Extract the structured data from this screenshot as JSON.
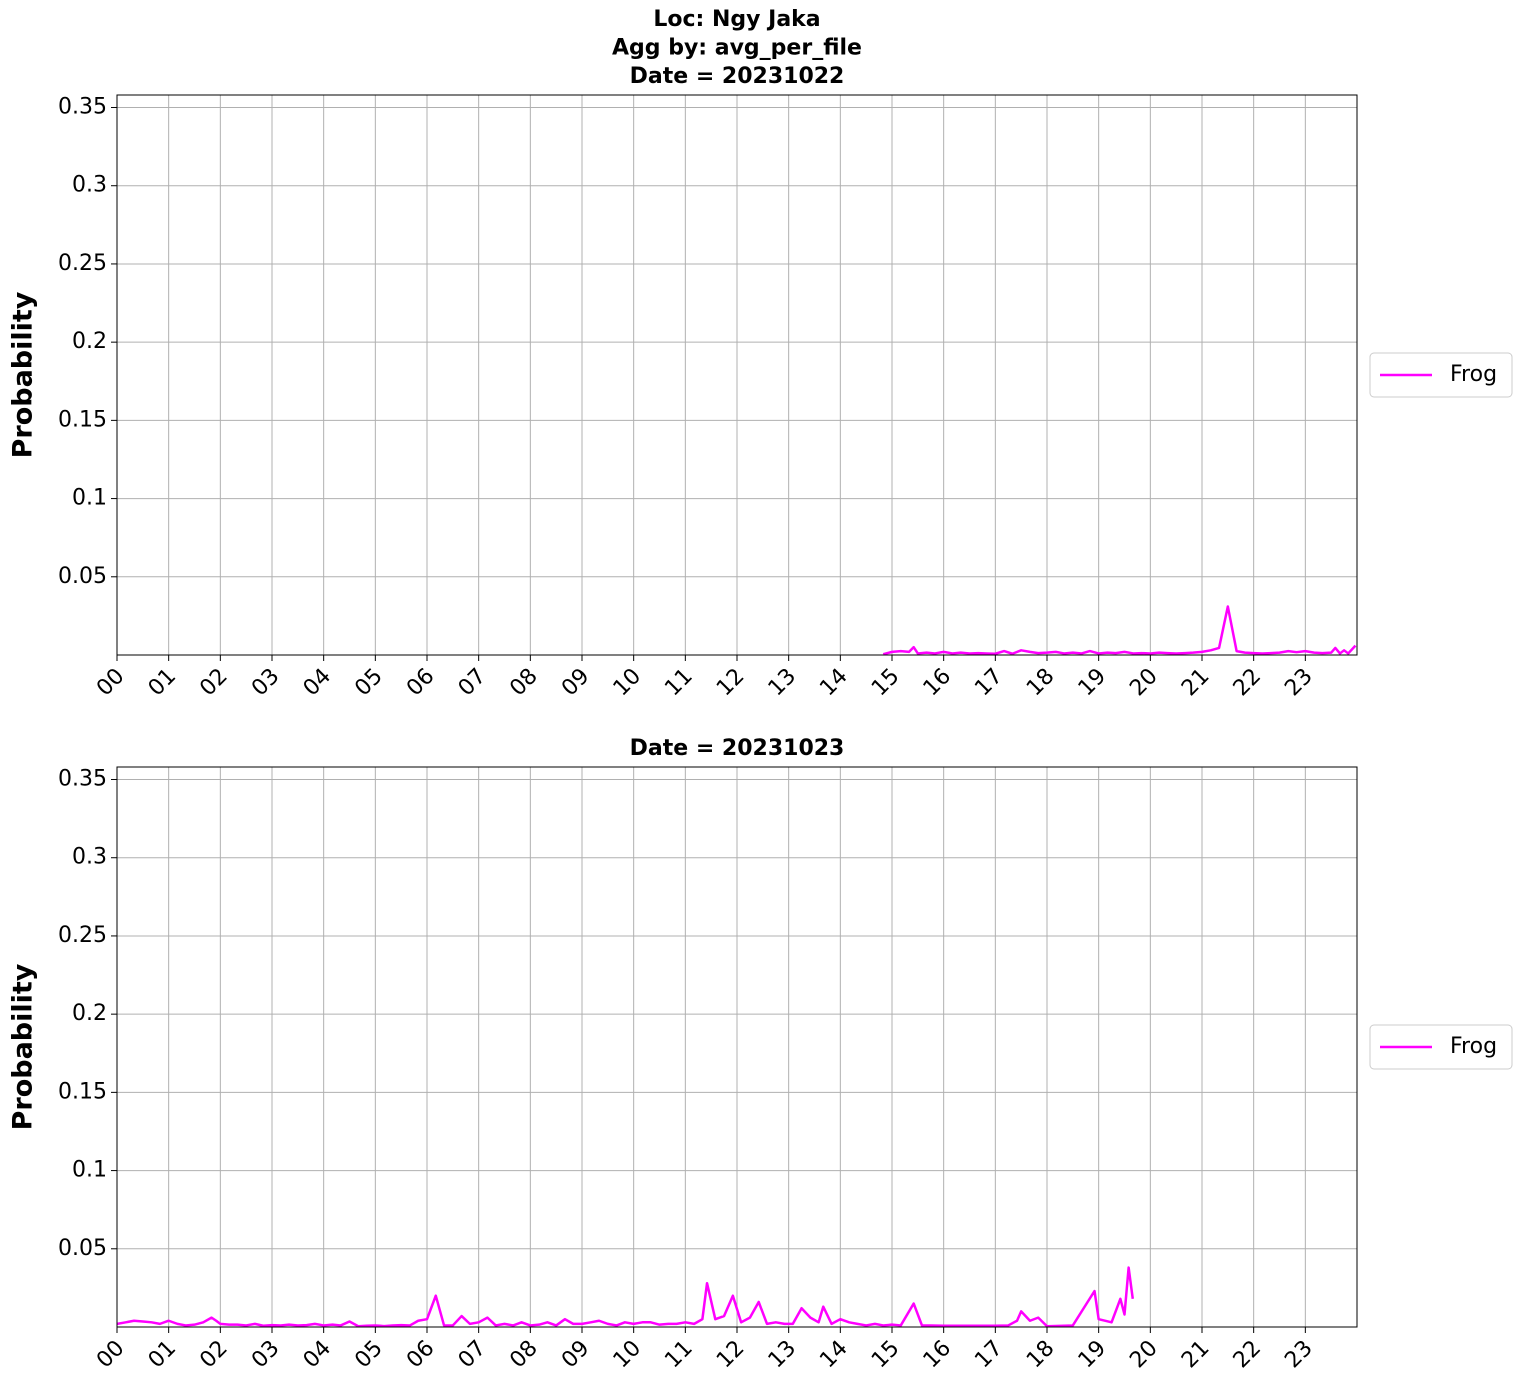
{
  "chart_data": [
    {
      "type": "line",
      "title": [
        "Loc: Ngy Jaka",
        "Agg by: avg_per_file",
        "Date = 20231022"
      ],
      "ylabel": "Probability",
      "x": [
        14.83,
        15.0,
        15.17,
        15.33,
        15.42,
        15.5,
        15.67,
        15.83,
        16.0,
        16.17,
        16.33,
        16.5,
        16.67,
        16.83,
        17.0,
        17.17,
        17.33,
        17.5,
        17.67,
        17.83,
        18.0,
        18.17,
        18.33,
        18.5,
        18.67,
        18.83,
        19.0,
        19.17,
        19.33,
        19.5,
        19.67,
        19.83,
        20.0,
        20.17,
        20.33,
        20.5,
        20.67,
        20.83,
        21.0,
        21.17,
        21.33,
        21.5,
        21.67,
        21.83,
        22.0,
        22.17,
        22.33,
        22.5,
        22.67,
        22.83,
        23.0,
        23.17,
        23.33,
        23.5,
        23.58,
        23.67,
        23.75,
        23.83,
        23.97
      ],
      "series": [
        {
          "name": "Frog",
          "color": "#ff00ff",
          "values": [
            0.0005,
            0.002,
            0.0025,
            0.002,
            0.005,
            0.001,
            0.0015,
            0.001,
            0.002,
            0.001,
            0.0015,
            0.001,
            0.0012,
            0.001,
            0.0008,
            0.0025,
            0.0008,
            0.003,
            0.002,
            0.0012,
            0.0015,
            0.002,
            0.001,
            0.0015,
            0.001,
            0.0025,
            0.001,
            0.0015,
            0.0012,
            0.002,
            0.001,
            0.0012,
            0.001,
            0.0015,
            0.0012,
            0.001,
            0.0012,
            0.0015,
            0.002,
            0.003,
            0.0045,
            0.031,
            0.0025,
            0.0015,
            0.0012,
            0.001,
            0.0012,
            0.0015,
            0.0025,
            0.0018,
            0.0025,
            0.0015,
            0.0012,
            0.0015,
            0.0045,
            0.001,
            0.003,
            0.001,
            0.006
          ]
        }
      ],
      "xlim": [
        0,
        24
      ],
      "xticks": [
        {
          "value": 0,
          "label": "00"
        },
        {
          "value": 1,
          "label": "01"
        },
        {
          "value": 2,
          "label": "02"
        },
        {
          "value": 3,
          "label": "03"
        },
        {
          "value": 4,
          "label": "04"
        },
        {
          "value": 5,
          "label": "05"
        },
        {
          "value": 6,
          "label": "06"
        },
        {
          "value": 7,
          "label": "07"
        },
        {
          "value": 8,
          "label": "08"
        },
        {
          "value": 9,
          "label": "09"
        },
        {
          "value": 10,
          "label": "10"
        },
        {
          "value": 11,
          "label": "11"
        },
        {
          "value": 12,
          "label": "12"
        },
        {
          "value": 13,
          "label": "13"
        },
        {
          "value": 14,
          "label": "14"
        },
        {
          "value": 15,
          "label": "15"
        },
        {
          "value": 16,
          "label": "16"
        },
        {
          "value": 17,
          "label": "17"
        },
        {
          "value": 18,
          "label": "18"
        },
        {
          "value": 19,
          "label": "19"
        },
        {
          "value": 20,
          "label": "20"
        },
        {
          "value": 21,
          "label": "21"
        },
        {
          "value": 22,
          "label": "22"
        },
        {
          "value": 23,
          "label": "23"
        }
      ],
      "ylim": [
        0,
        0.358
      ],
      "yticks": [
        0.05,
        0.1,
        0.15,
        0.2,
        0.25,
        0.3,
        0.35
      ],
      "grid": true,
      "legend": "right"
    },
    {
      "type": "line",
      "title": [
        "Date = 20231023"
      ],
      "ylabel": "Probability",
      "x": [
        0,
        0.17,
        0.33,
        0.5,
        0.67,
        0.83,
        1.0,
        1.17,
        1.33,
        1.5,
        1.67,
        1.83,
        1.92,
        2.0,
        2.17,
        2.33,
        2.5,
        2.67,
        2.83,
        3.0,
        3.17,
        3.33,
        3.5,
        3.67,
        3.83,
        4.0,
        4.17,
        4.33,
        4.5,
        4.67,
        4.83,
        5.0,
        5.17,
        5.33,
        5.5,
        5.67,
        5.83,
        6.0,
        6.17,
        6.33,
        6.5,
        6.67,
        6.83,
        7.0,
        7.17,
        7.33,
        7.5,
        7.67,
        7.83,
        8.0,
        8.17,
        8.33,
        8.5,
        8.67,
        8.83,
        9.0,
        9.17,
        9.33,
        9.5,
        9.67,
        9.83,
        10.0,
        10.17,
        10.33,
        10.5,
        10.67,
        10.83,
        11.0,
        11.17,
        11.33,
        11.42,
        11.58,
        11.75,
        11.92,
        12.08,
        12.25,
        12.42,
        12.58,
        12.75,
        12.92,
        13.08,
        13.25,
        13.42,
        13.58,
        13.67,
        13.83,
        14.0,
        14.17,
        14.33,
        14.5,
        14.67,
        14.83,
        15.0,
        15.17,
        15.42,
        15.58,
        15.75,
        16.0,
        16.5,
        17.0,
        17.25,
        17.42,
        17.5,
        17.67,
        17.83,
        18.0,
        18.5,
        18.92,
        19.0,
        19.25,
        19.42,
        19.5,
        19.58,
        19.66
      ],
      "series": [
        {
          "name": "Frog",
          "color": "#ff00ff",
          "values": [
            0.002,
            0.003,
            0.004,
            0.0035,
            0.003,
            0.002,
            0.004,
            0.002,
            0.001,
            0.0015,
            0.003,
            0.006,
            0.004,
            0.002,
            0.0015,
            0.0015,
            0.001,
            0.002,
            0.0008,
            0.0012,
            0.001,
            0.0015,
            0.001,
            0.0012,
            0.002,
            0.001,
            0.0015,
            0.001,
            0.0035,
            0.0005,
            0.0008,
            0.001,
            0.0006,
            0.001,
            0.0012,
            0.001,
            0.004,
            0.005,
            0.02,
            0.001,
            0.001,
            0.007,
            0.002,
            0.003,
            0.006,
            0.001,
            0.002,
            0.001,
            0.003,
            0.001,
            0.0015,
            0.003,
            0.001,
            0.005,
            0.002,
            0.002,
            0.003,
            0.004,
            0.002,
            0.001,
            0.003,
            0.002,
            0.003,
            0.003,
            0.0015,
            0.002,
            0.002,
            0.003,
            0.002,
            0.005,
            0.028,
            0.005,
            0.007,
            0.02,
            0.003,
            0.006,
            0.016,
            0.002,
            0.003,
            0.002,
            0.002,
            0.012,
            0.006,
            0.003,
            0.013,
            0.002,
            0.005,
            0.003,
            0.002,
            0.001,
            0.002,
            0.001,
            0.0015,
            0.001,
            0.015,
            0.001,
            0.001,
            0.0008,
            0.0008,
            0.0008,
            0.001,
            0.004,
            0.01,
            0.004,
            0.006,
            0.0005,
            0.001,
            0.023,
            0.005,
            0.003,
            0.018,
            0.008,
            0.038,
            0.018
          ]
        }
      ],
      "xlim": [
        0,
        24
      ],
      "xticks": [
        {
          "value": 0,
          "label": "00"
        },
        {
          "value": 1,
          "label": "01"
        },
        {
          "value": 2,
          "label": "02"
        },
        {
          "value": 3,
          "label": "03"
        },
        {
          "value": 4,
          "label": "04"
        },
        {
          "value": 5,
          "label": "05"
        },
        {
          "value": 6,
          "label": "06"
        },
        {
          "value": 7,
          "label": "07"
        },
        {
          "value": 8,
          "label": "08"
        },
        {
          "value": 9,
          "label": "09"
        },
        {
          "value": 10,
          "label": "10"
        },
        {
          "value": 11,
          "label": "11"
        },
        {
          "value": 12,
          "label": "12"
        },
        {
          "value": 13,
          "label": "13"
        },
        {
          "value": 14,
          "label": "14"
        },
        {
          "value": 15,
          "label": "15"
        },
        {
          "value": 16,
          "label": "16"
        },
        {
          "value": 17,
          "label": "17"
        },
        {
          "value": 18,
          "label": "18"
        },
        {
          "value": 19,
          "label": "19"
        },
        {
          "value": 20,
          "label": "20"
        },
        {
          "value": 21,
          "label": "21"
        },
        {
          "value": 22,
          "label": "22"
        },
        {
          "value": 23,
          "label": "23"
        }
      ],
      "ylim": [
        0,
        0.358
      ],
      "yticks": [
        0.05,
        0.1,
        0.15,
        0.2,
        0.25,
        0.3,
        0.35
      ],
      "grid": true,
      "legend": "right"
    }
  ]
}
